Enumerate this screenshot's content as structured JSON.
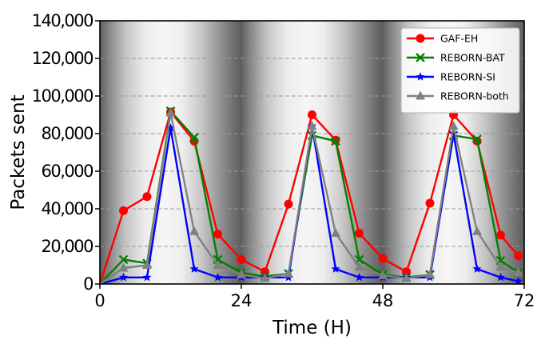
{
  "chart_data": {
    "type": "line",
    "title": "",
    "xlabel": "Time (H)",
    "ylabel": "Packets sent",
    "xlim": [
      0,
      72
    ],
    "ylim": [
      0,
      140000
    ],
    "xticks": [
      0,
      24,
      48,
      72
    ],
    "yticks": [
      0,
      20000,
      40000,
      60000,
      80000,
      100000,
      120000,
      140000
    ],
    "xtick_labels": [
      "0",
      "24",
      "48",
      "72"
    ],
    "ytick_labels": [
      "0",
      "20,000",
      "40,000",
      "60,000",
      "80,000",
      "100,000",
      "120,000",
      "140,000"
    ],
    "grid": "horizontal dashed",
    "legend_position": "top-right",
    "background": "day/night shading gradient, darkest at 0, 24, 48, 72 h",
    "x": [
      0,
      4,
      8,
      12,
      16,
      20,
      24,
      28,
      32,
      36,
      40,
      44,
      48,
      52,
      56,
      60,
      64,
      68,
      71
    ],
    "series": [
      {
        "name": "GAF-EH",
        "color": "#ff0000",
        "marker": "circle",
        "values": [
          0,
          39000,
          46500,
          91500,
          76000,
          26500,
          13000,
          6500,
          42500,
          90000,
          76500,
          27000,
          13500,
          6500,
          43000,
          90000,
          76000,
          26000,
          15000
        ]
      },
      {
        "name": "REBORN-BAT",
        "color": "#008000",
        "marker": "x",
        "values": [
          0,
          13000,
          11000,
          92000,
          78000,
          13000,
          6000,
          4000,
          5500,
          79000,
          76000,
          13000,
          5000,
          3500,
          5000,
          79000,
          77000,
          12500,
          6000
        ]
      },
      {
        "name": "REBORN-SI",
        "color": "#0000ff",
        "marker": "star",
        "values": [
          0,
          3500,
          3500,
          83000,
          8000,
          3500,
          3500,
          3500,
          3500,
          84000,
          8000,
          3500,
          3500,
          3500,
          3500,
          80000,
          8000,
          3500,
          1500
        ]
      },
      {
        "name": "REBORN-both",
        "color": "#808080",
        "marker": "triangle",
        "values": [
          0,
          8500,
          10000,
          91000,
          28000,
          10000,
          5000,
          3000,
          5500,
          84000,
          27000,
          9000,
          4500,
          3000,
          5000,
          84000,
          28000,
          9000,
          6000
        ]
      }
    ]
  }
}
